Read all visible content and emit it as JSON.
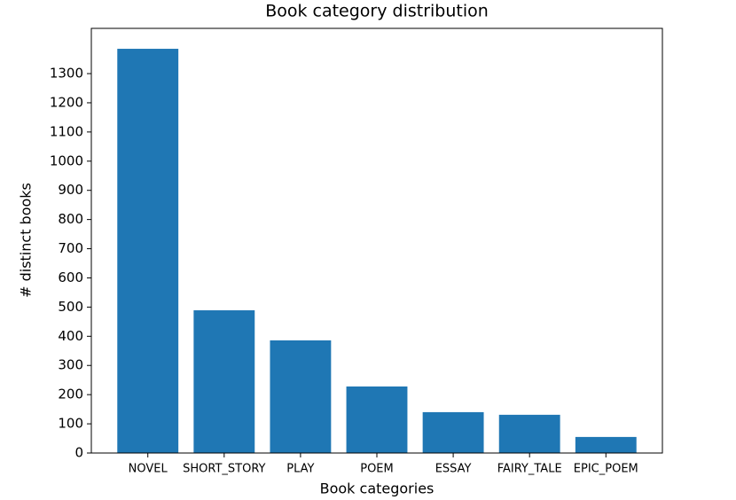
{
  "chart_data": {
    "type": "bar",
    "title": "Book category distribution",
    "x_label": "Book categories",
    "y_label": "# distinct books",
    "categories": [
      "NOVEL",
      "SHORT_STORY",
      "PLAY",
      "POEM",
      "ESSAY",
      "FAIRY_TALE",
      "EPIC_POEM"
    ],
    "values": [
      1385,
      489,
      386,
      228,
      140,
      131,
      55
    ],
    "color": "#1f77b4",
    "ylim": [
      0,
      1455
    ],
    "yticks": [
      0,
      100,
      200,
      300,
      400,
      500,
      600,
      700,
      800,
      900,
      1000,
      1100,
      1200,
      1300
    ]
  }
}
